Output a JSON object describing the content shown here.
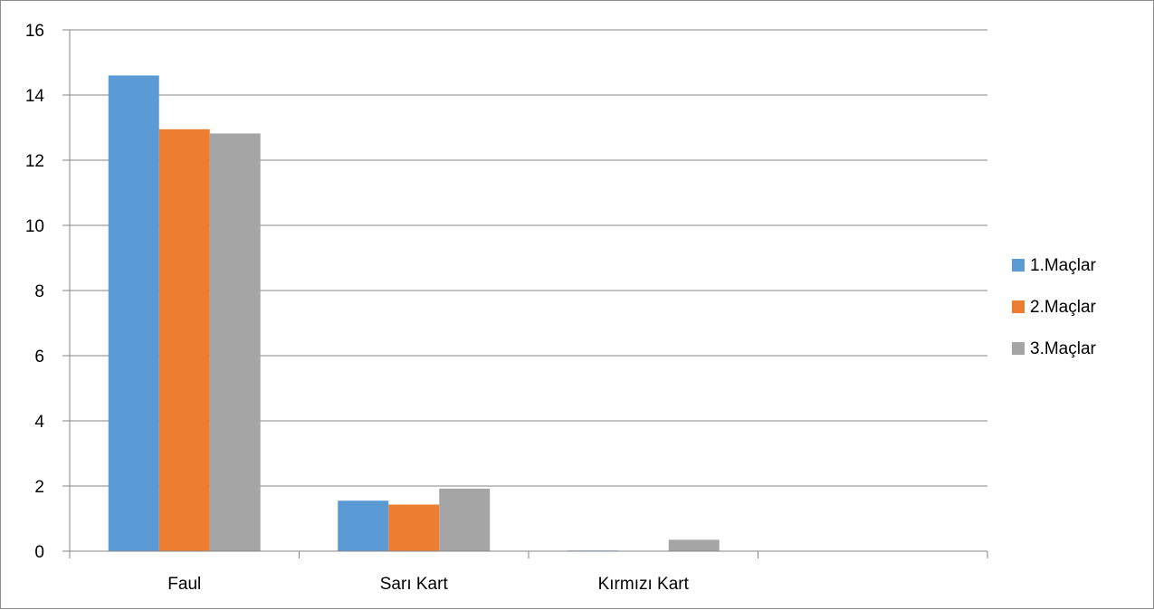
{
  "chart_data": {
    "type": "bar",
    "title": "",
    "xlabel": "",
    "ylabel": "",
    "categories": [
      "Faul",
      "Sarı Kart",
      "Kırmızı Kart",
      ""
    ],
    "series": [
      {
        "name": "1.Maçlar",
        "values": [
          14.6,
          1.55,
          0.02,
          null
        ]
      },
      {
        "name": "2.Maçlar",
        "values": [
          12.95,
          1.43,
          0.0,
          null
        ]
      },
      {
        "name": "3.Maçlar",
        "values": [
          12.82,
          1.92,
          0.35,
          null
        ]
      }
    ],
    "ylim": [
      0,
      16
    ],
    "y_ticks": [
      "0",
      "2",
      "4",
      "6",
      "8",
      "10",
      "12",
      "14",
      "16"
    ],
    "grid": true,
    "legend_position": "right"
  },
  "colors": {
    "series": [
      "#5B9BD5",
      "#ED7D31",
      "#A5A5A5"
    ],
    "grid": "#868686",
    "axis": "#868686"
  }
}
